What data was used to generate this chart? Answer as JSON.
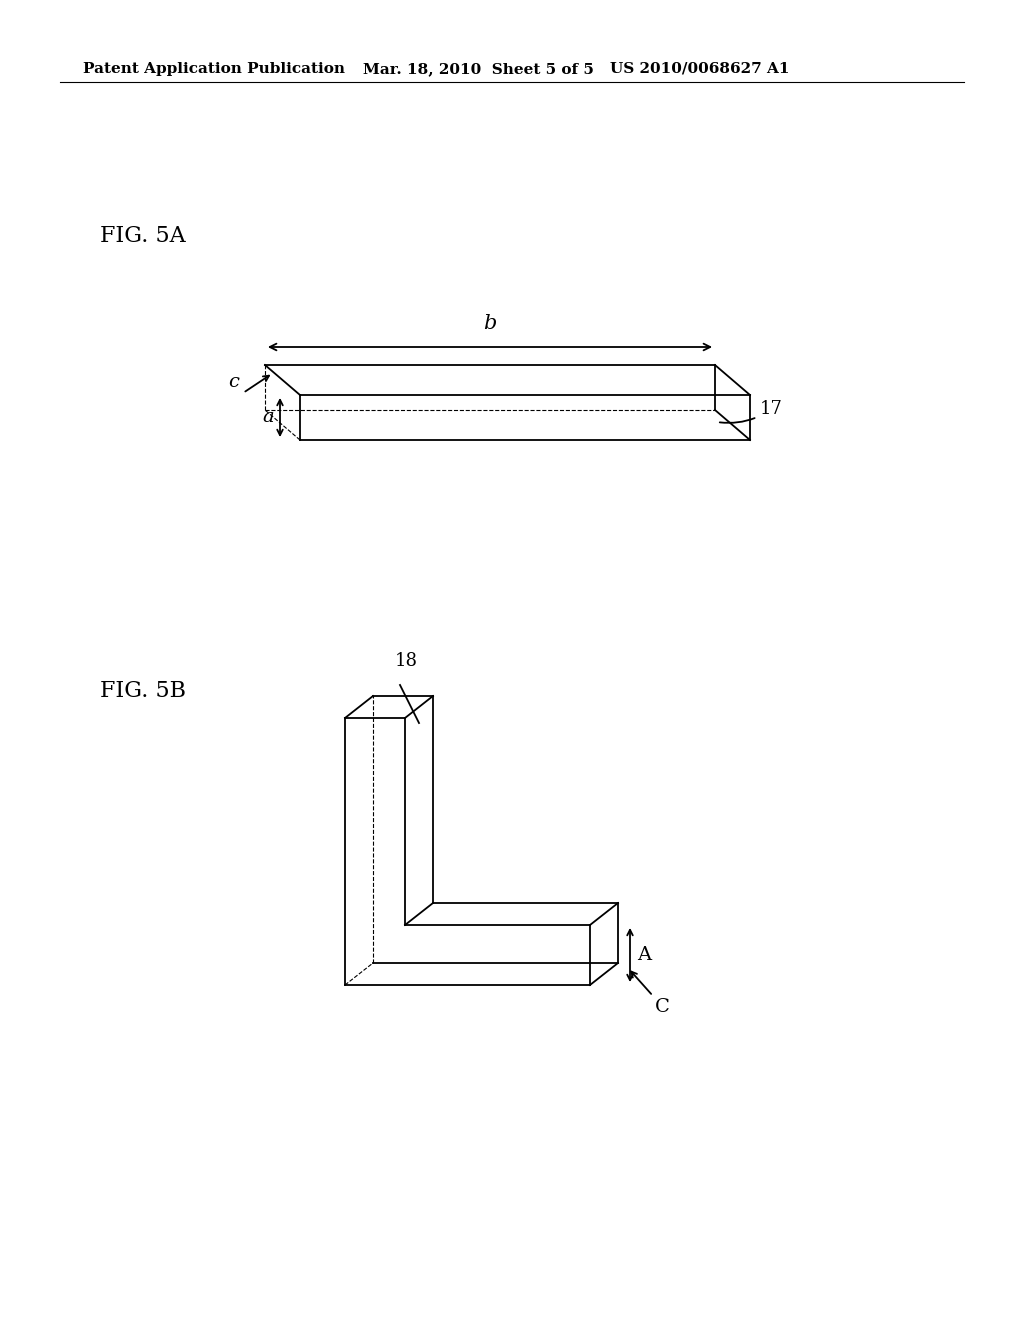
{
  "background_color": "#ffffff",
  "header_left": "Patent Application Publication",
  "header_mid": "Mar. 18, 2010  Sheet 5 of 5",
  "header_right": "US 2010/0068627 A1",
  "header_fontsize": 11,
  "fig5a_label": "FIG. 5A",
  "fig5b_label": "FIG. 5B",
  "label_fontsize": 16,
  "annotation_fontsize": 14,
  "ref_fontsize": 13,
  "line_color": "#000000",
  "line_width": 1.3
}
